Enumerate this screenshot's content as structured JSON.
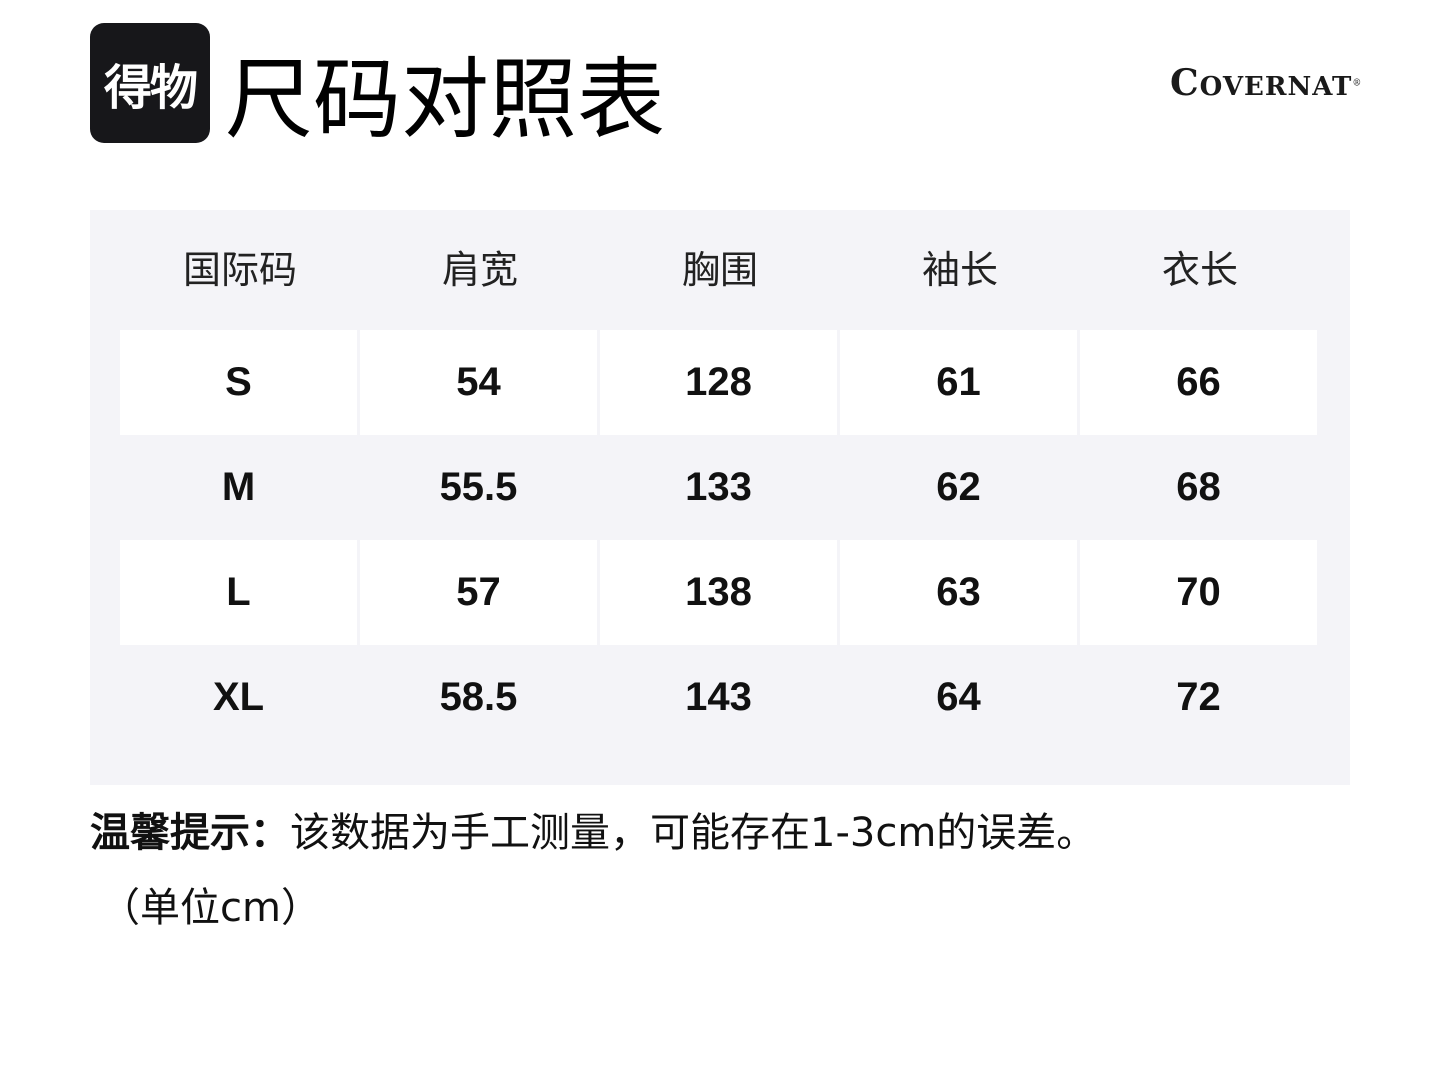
{
  "logo": {
    "text": "得物"
  },
  "title": "尺码对照表",
  "brand": {
    "first": "C",
    "rest": "OVERNAT",
    "mark": "®"
  },
  "table": {
    "headers": [
      "国际码",
      "肩宽",
      "胸围",
      "袖长",
      "衣长"
    ],
    "rows": [
      [
        "S",
        "54",
        "128",
        "61",
        "66"
      ],
      [
        "M",
        "55.5",
        "133",
        "62",
        "68"
      ],
      [
        "L",
        "57",
        "138",
        "63",
        "70"
      ],
      [
        "XL",
        "58.5",
        "143",
        "64",
        "72"
      ]
    ]
  },
  "note": {
    "label": "温馨提示：",
    "text": "该数据为手工测量，可能存在1-3cm的误差。",
    "unit": "（单位cm）"
  },
  "colors": {
    "panel": "#f4f4f8",
    "logo_bg": "#17171a"
  }
}
